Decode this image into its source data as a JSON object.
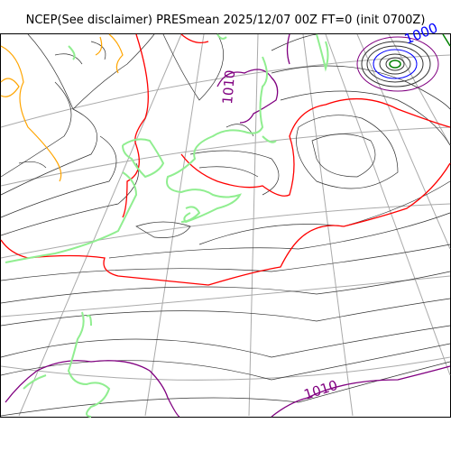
{
  "title": "NCEP(See disclaimer) PRESmean 2025/12/07 00Z FT=0 (init 0700Z)",
  "colors": {
    "isobar": "#333333",
    "isobar_1010": "#800080",
    "isobar_1020": "#ff0000",
    "isobar_1000": "#0000ff",
    "isobar_1030": "#ffa500",
    "coastline": "#90ee90",
    "graticule": "#aaaaaa",
    "low_center": "#008000"
  },
  "labels": {
    "upper_1010": "1010",
    "lower_1010": "1010",
    "top_1000": "1000"
  }
}
